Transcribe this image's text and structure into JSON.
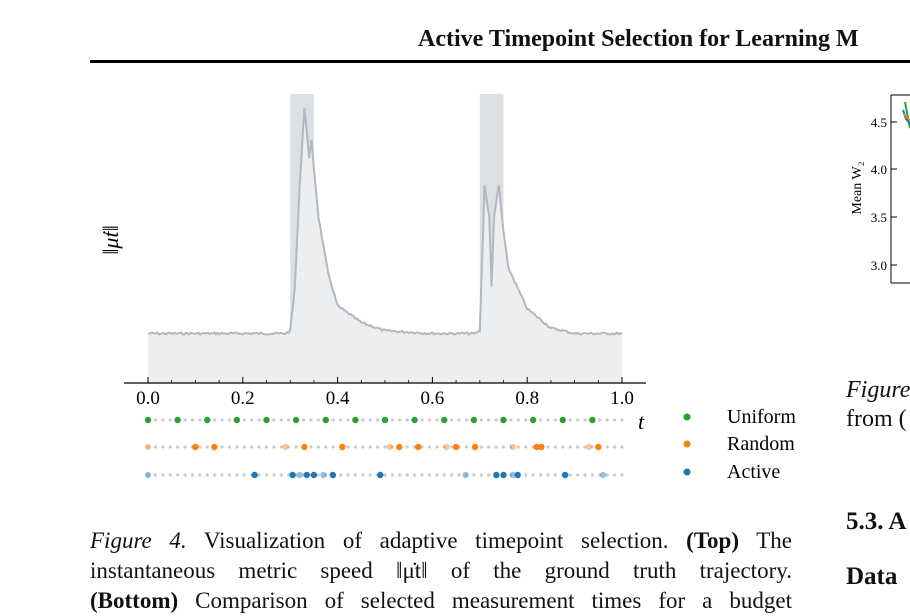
{
  "header": {
    "title": "Active Timepoint Selection for Learning M"
  },
  "figure4": {
    "ylabel": "‖μ̇t‖",
    "xticks": [
      "0.0",
      "0.2",
      "0.4",
      "0.6",
      "0.8",
      "1.0"
    ],
    "t_label": "t",
    "legend": [
      "Uniform",
      "Random",
      "Active"
    ],
    "colors": {
      "uniform": "#2ca02c",
      "random": "#ff7f0e",
      "active": "#1f77b4",
      "curve": "#b3b8be",
      "fill": "#eceef0",
      "band": "#dde0e3"
    },
    "caption": {
      "label": "Figure 4.",
      "line1": "Visualization of adaptive timepoint selection.",
      "top": "(Top)",
      "line1_end": "The",
      "line2": "instantaneous metric speed ‖μ̇t‖ of the ground truth trajectory.",
      "line3_bold": "(Bottom)",
      "line3": "Comparison of selected measurement times for a budget"
    }
  },
  "chart_data": {
    "type": "line",
    "title": "",
    "xlabel": "t",
    "ylabel": "‖μ̇t‖",
    "xlim": [
      0,
      1
    ],
    "x": [
      0.0,
      0.2,
      0.29,
      0.3,
      0.31,
      0.32,
      0.33,
      0.34,
      0.345,
      0.35,
      0.36,
      0.38,
      0.4,
      0.45,
      0.5,
      0.6,
      0.69,
      0.7,
      0.71,
      0.72,
      0.725,
      0.73,
      0.74,
      0.75,
      0.76,
      0.8,
      0.85,
      0.9,
      1.0
    ],
    "values": [
      0.18,
      0.18,
      0.18,
      0.19,
      0.35,
      0.72,
      1.0,
      0.82,
      0.88,
      0.78,
      0.6,
      0.4,
      0.28,
      0.22,
      0.19,
      0.18,
      0.18,
      0.19,
      0.72,
      0.6,
      0.35,
      0.6,
      0.72,
      0.55,
      0.42,
      0.27,
      0.2,
      0.18,
      0.18
    ],
    "shaded_intervals": [
      [
        0.3,
        0.35
      ],
      [
        0.7,
        0.75
      ]
    ],
    "selection_rows": [
      {
        "name": "Uniform",
        "times": [
          0.0,
          0.0625,
          0.125,
          0.1875,
          0.25,
          0.3125,
          0.375,
          0.4375,
          0.5,
          0.5625,
          0.625,
          0.6875,
          0.75,
          0.8125,
          0.875,
          0.9375
        ]
      },
      {
        "name": "Random",
        "times": [
          0.0,
          0.1,
          0.14,
          0.29,
          0.33,
          0.41,
          0.51,
          0.53,
          0.57,
          0.63,
          0.65,
          0.69,
          0.77,
          0.82,
          0.83,
          0.93,
          0.95
        ]
      },
      {
        "name": "Active",
        "times": [
          0.0,
          0.225,
          0.305,
          0.32,
          0.335,
          0.35,
          0.37,
          0.39,
          0.49,
          0.67,
          0.735,
          0.75,
          0.77,
          0.78,
          0.88,
          0.96
        ]
      }
    ]
  },
  "right_panel": {
    "ylabel": "Mean W₂",
    "yticks": [
      "4.5",
      "4.0",
      "3.5",
      "3.0"
    ],
    "fig_prefix": "Figure",
    "line2": "from (",
    "section": "5.3. A",
    "data": "Data"
  }
}
